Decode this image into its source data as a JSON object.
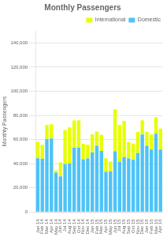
{
  "chart_data": {
    "type": "bar",
    "title": "Monthly Passengers",
    "y_label": "Monthly Passengers",
    "stacked": true,
    "grid": true,
    "legend": "upper right",
    "categories": [
      "Jan 14",
      "Feb 14",
      "Mar 14",
      "Apr 14",
      "May 14",
      "Jun 14",
      "Jul 14",
      "Aug 14",
      "Sep 14",
      "Oct 14",
      "Nov 14",
      "Dec 14",
      "Jan 15",
      "Feb 15",
      "Mar 15",
      "Apr 15",
      "May 15",
      "Jun 15",
      "Jul 15",
      "Aug 15",
      "Sep 15",
      "Oct 15",
      "Nov 15",
      "Dec 15",
      "Jan 16",
      "Feb 16",
      "Mar 16",
      "Apr 16"
    ],
    "series": [
      {
        "name": "Domestic",
        "color": "#4FC3F7",
        "values": [
          44584,
          43993,
          60168,
          60803,
          32641,
          29561,
          39594,
          40095,
          53199,
          53148,
          43489,
          44439,
          49276,
          54763,
          50631,
          33263,
          33562,
          50281,
          41605,
          45366,
          44387,
          43186,
          48717,
          64188,
          54846,
          51754,
          64771,
          51794
        ]
      },
      {
        "name": "International",
        "color": "#E6FF00",
        "values": [
          13573,
          11680,
          11888,
          11896,
          1748,
          11581,
          28294,
          29993,
          22513,
          22771,
          12896,
          11175,
          14981,
          11920,
          13130,
          11200,
          8247,
          34875,
          30371,
          30128,
          13578,
          13478,
          17541,
          11800,
          11596,
          12391,
          13580,
          17291
        ]
      }
    ],
    "ylim": [
      0,
      150000
    ],
    "yticks": [
      0,
      {
        "value": 20000,
        "label": "20,000"
      },
      {
        "value": 40000,
        "label": "40,000"
      },
      {
        "value": 60000,
        "label": "60,000"
      },
      {
        "value": 80000,
        "label": "80,000"
      },
      {
        "value": 100000,
        "label": "100,000"
      },
      {
        "value": 120000,
        "label": "120,000"
      },
      {
        "value": 140000,
        "label": "140,000"
      }
    ]
  }
}
